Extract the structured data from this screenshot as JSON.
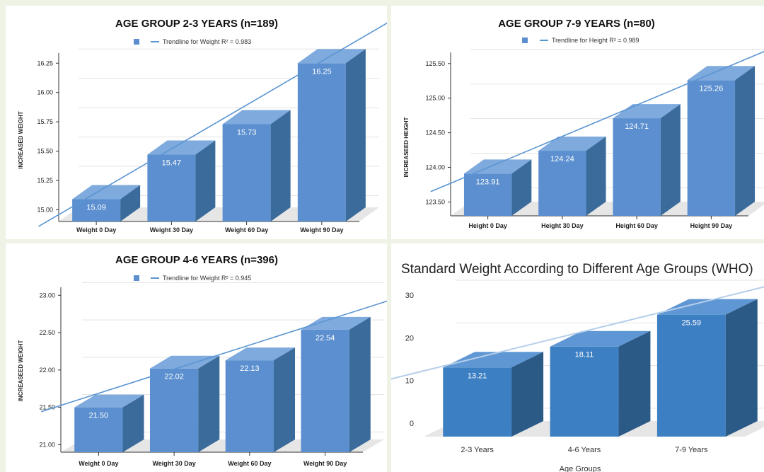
{
  "chart_data": [
    {
      "type": "bar",
      "title": "AGE GROUP 2-3 YEARS (n=189)",
      "legend": "Trendline for Weight R² = 0.983",
      "ylabel": "INCREASED WEIGHT",
      "xlabel": "",
      "categories": [
        "Weight 0 Day",
        "Weight 30 Day",
        "Weight 60 Day",
        "Weight 90 Day"
      ],
      "values": [
        15.09,
        15.47,
        15.73,
        16.25
      ],
      "value_labels": [
        "15.09",
        "15.47",
        "15.73",
        "16.25"
      ],
      "y_ticks": [
        "15.00",
        "15.25",
        "15.50",
        "15.75",
        "16.00",
        "16.25"
      ],
      "ylim": [
        14.9,
        16.3
      ],
      "trendline": true,
      "grid": true,
      "legend_position": "top"
    },
    {
      "type": "bar",
      "title": "AGE GROUP 7-9 YEARS (n=80)",
      "legend": "Trendline for Height R² = 0.989",
      "ylabel": "INCREASEED HEIGHT",
      "xlabel": "",
      "categories": [
        "Height 0 Day",
        "Height 30 Day",
        "Height 60 Day",
        "Height 90 Day"
      ],
      "values": [
        123.91,
        124.24,
        124.71,
        125.26
      ],
      "value_labels": [
        "123.91",
        "124.24",
        "124.71",
        "125.26"
      ],
      "y_ticks": [
        "123.50",
        "124.00",
        "124.50",
        "125.00",
        "125.50"
      ],
      "ylim": [
        123.3,
        125.6
      ],
      "trendline": true,
      "grid": true,
      "legend_position": "top"
    },
    {
      "type": "bar",
      "title": "AGE GROUP 4-6 YEARS (n=396)",
      "legend": "Trendline for Weight R² = 0.945",
      "ylabel": "INCREASEED WEIGHT",
      "xlabel": "",
      "categories": [
        "Weight 0 Day",
        "Weight 30 Day",
        "Weight 60 Day",
        "Weight 90 Day"
      ],
      "values": [
        21.5,
        22.02,
        22.13,
        22.54
      ],
      "value_labels": [
        "21.50",
        "22.02",
        "22.13",
        "22.54"
      ],
      "y_ticks": [
        "21.00",
        "21.50",
        "22.00",
        "22.50",
        "23.00"
      ],
      "ylim": [
        20.9,
        23.05
      ],
      "trendline": true,
      "grid": true,
      "legend_position": "top"
    },
    {
      "type": "bar",
      "title": "Standard Weight According to Different Age Groups (WHO)",
      "ylabel": "",
      "xlabel": "Age Groups",
      "categories": [
        "2-3 Years",
        "4-6 Years",
        "7-9 Years"
      ],
      "values": [
        13.21,
        18.11,
        25.59
      ],
      "value_labels": [
        "13.21",
        "18.11",
        "25.59"
      ],
      "y_ticks": [
        "0",
        "10",
        "20",
        "30"
      ],
      "ylim": [
        -3,
        32
      ],
      "trendline": true,
      "grid": true
    }
  ],
  "colors": {
    "bar_front": "#5b8fcf",
    "bar_top": "#7eaadd",
    "bar_side": "#3a6b9a",
    "bar4_front": "#3d7fc3",
    "bar4_top": "#5f97d4",
    "bar4_side": "#2b5a87",
    "trend": "#5b95d3",
    "trend4": "#b6cfea",
    "floor": "#e6e6e6",
    "grid": "#e3e3e3"
  }
}
